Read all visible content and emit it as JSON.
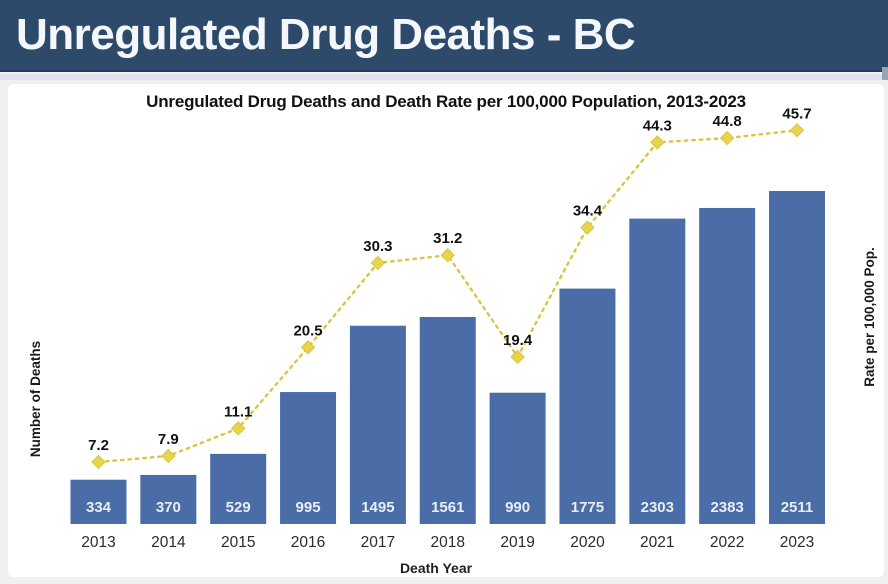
{
  "header": {
    "title": "Unregulated Drug Deaths - BC"
  },
  "chart": {
    "title": "Unregulated Drug Deaths and Death Rate per 100,000 Population, 2013-2023",
    "x_axis_label": "Death Year",
    "y_left_label": "Number of Deaths",
    "y_right_label": "Rate per 100,000 Pop."
  },
  "chart_data": {
    "type": "bar",
    "subtype": "bar-line-combo",
    "title": "Unregulated Drug Deaths and Death Rate per 100,000 Population, 2013-2023",
    "xlabel": "Death Year",
    "ylabel_left": "Number of Deaths",
    "ylabel_right": "Rate per 100,000 Pop.",
    "categories": [
      "2013",
      "2014",
      "2015",
      "2016",
      "2017",
      "2018",
      "2019",
      "2020",
      "2021",
      "2022",
      "2023"
    ],
    "series": [
      {
        "name": "Number of Deaths",
        "type": "bar",
        "axis": "left",
        "values": [
          334,
          370,
          529,
          995,
          1495,
          1561,
          990,
          1775,
          2303,
          2383,
          2511
        ],
        "data_labels": [
          "334",
          "370",
          "529",
          "995",
          "1495",
          "1561",
          "990",
          "1775",
          "2303",
          "2383",
          "2511"
        ]
      },
      {
        "name": "Rate per 100,000 Pop.",
        "type": "line",
        "line_style": "dotted",
        "marker": "diamond",
        "axis": "right",
        "values": [
          7.2,
          7.9,
          11.1,
          20.5,
          30.3,
          31.2,
          19.4,
          34.4,
          44.3,
          44.8,
          45.7
        ],
        "data_labels": [
          "7.2",
          "7.9",
          "11.1",
          "20.5",
          "30.3",
          "31.2",
          "19.4",
          "34.4",
          "44.3",
          "44.8",
          "45.7"
        ]
      }
    ],
    "ylim_left": [
      0,
      2800
    ],
    "ylim_right": [
      0,
      50
    ],
    "grid": false,
    "legend_position": "none",
    "tick_labels_hidden": true
  },
  "colors": {
    "header_bg": "#2e4a6b",
    "bar": "#4a6da7",
    "line": "#d9c63e",
    "marker": "#e8d44c",
    "bar_label_text": "#e9eef6",
    "panel_bg": "#ffffff",
    "page_bg": "#f1f0ee",
    "accent_strip": "#dde4f0"
  }
}
